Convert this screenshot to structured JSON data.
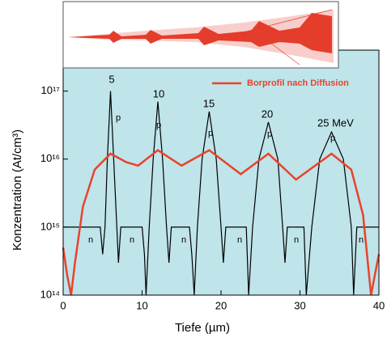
{
  "chart_data": {
    "type": "line",
    "x_label": "Tiefe (µm)",
    "y_label": "Konzentration (At/cm³)",
    "log_y": true,
    "xlim": [
      0,
      40
    ],
    "xticks": [
      0,
      10,
      20,
      30,
      40
    ],
    "ylim": [
      100000000000000.0,
      4e+17
    ],
    "yticks": [
      {
        "value": 100000000000000.0,
        "label": "10¹⁴"
      },
      {
        "value": 1000000000000000.0,
        "label": "10¹⁵"
      },
      {
        "value": 1e+16,
        "label": "10¹⁶"
      },
      {
        "value": 1e+17,
        "label": "10¹⁷"
      }
    ],
    "background": "#bfe4ea",
    "legend_position": "upper right",
    "series": [
      {
        "color": "#000000",
        "x": [
          0,
          4.7,
          5.0,
          5.3,
          5.6,
          6.0,
          6.4,
          6.8,
          7.0,
          7.3,
          10.0,
          10.3,
          10.5,
          10.9,
          11.4,
          12.0,
          12.6,
          13.1,
          13.4,
          13.7,
          16.0,
          16.3,
          16.6,
          17.0,
          17.6,
          18.5,
          19.4,
          20.0,
          20.3,
          20.6,
          23.2,
          23.5,
          24.0,
          24.8,
          26.0,
          27.2,
          27.8,
          28.1,
          28.4,
          30.5,
          30.8,
          31.5,
          32.5,
          34.0,
          35.5,
          36.5,
          36.8,
          37.2,
          40
        ],
        "values": [
          1000000000000000.0,
          1000000000000000.0,
          400000000000000.0,
          1000000000000000.0,
          1e+16,
          1e+17,
          1e+16,
          1000000000000000.0,
          300000000000000.0,
          1000000000000000.0,
          1000000000000000.0,
          400000000000000.0,
          100000000000000.0,
          1000000000000000.0,
          1e+16,
          7e+16,
          1e+16,
          1000000000000000.0,
          300000000000000.0,
          1000000000000000.0,
          1000000000000000.0,
          400000000000000.0,
          100000000000000.0,
          1000000000000000.0,
          1e+16,
          5e+16,
          1e+16,
          1000000000000000.0,
          300000000000000.0,
          1000000000000000.0,
          1000000000000000.0,
          100000000000000.0,
          1000000000000000.0,
          1e+16,
          3.5e+16,
          1e+16,
          1000000000000000.0,
          300000000000000.0,
          1000000000000000.0,
          1000000000000000.0,
          100000000000000.0,
          1000000000000000.0,
          1e+16,
          2.5e+16,
          1e+16,
          1000000000000000.0,
          100000000000000.0,
          1000000000000000.0,
          1000000000000000.0
        ]
      },
      {
        "name": "Borprofil nach Diffusion",
        "color": "#e8432c",
        "x": [
          0,
          0.5,
          1.0,
          1.5,
          2.5,
          4,
          6,
          8,
          9.5,
          12,
          15,
          18.5,
          22.5,
          26,
          29.5,
          34,
          36.5,
          38,
          39,
          39.5,
          40
        ],
        "values": [
          500000000000000.0,
          200000000000000.0,
          100000000000000.0,
          300000000000000.0,
          2000000000000000.0,
          7000000000000000.0,
          1.2e+16,
          9000000000000000.0,
          8000000000000000.0,
          1.35e+16,
          8000000000000000.0,
          1.35e+16,
          6000000000000000.0,
          1.2e+16,
          5000000000000000.0,
          1.2e+16,
          7000000000000000.0,
          1500000000000000.0,
          100000000000000.0,
          200000000000000.0,
          400000000000000.0
        ]
      }
    ],
    "annotations": [
      "5",
      "10",
      "15",
      "20",
      "25  MeV",
      "p",
      "p",
      "p",
      "p",
      "p",
      "n",
      "n",
      "n",
      "n",
      "n",
      "n"
    ]
  }
}
